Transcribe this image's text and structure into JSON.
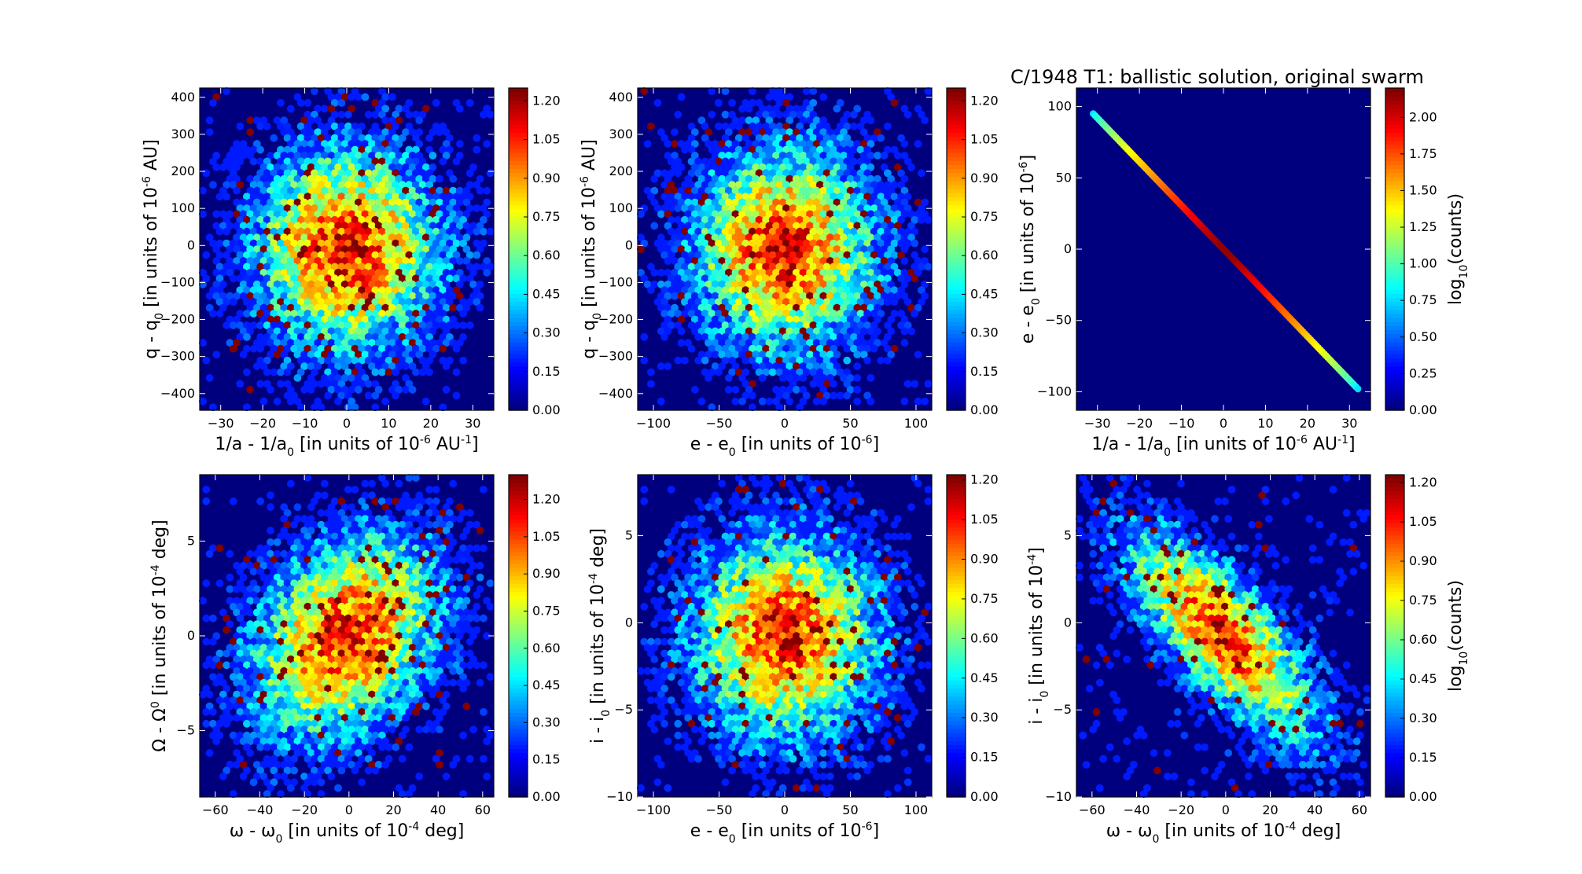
{
  "title": "C/1948 T1:  ballistic solution, original swarm",
  "colors": {
    "background": "#00007f",
    "frame": "#000000"
  },
  "chart_data": [
    {
      "type": "heatmap",
      "xlabel_parts": [
        "1/a - 1/a",
        "0",
        " [in units of 10",
        "-6",
        " AU",
        "-1",
        "]"
      ],
      "ylabel_parts": [
        "q - q",
        "0",
        " [in units of 10",
        "-6",
        " AU]"
      ],
      "xlim": [
        -35,
        35
      ],
      "ylim": [
        -445,
        425
      ],
      "xticks": [
        -30,
        -20,
        -10,
        0,
        10,
        20,
        30
      ],
      "yticks": [
        -400,
        -300,
        -200,
        -100,
        0,
        100,
        200,
        300,
        400
      ],
      "corr": 0,
      "sx": 0.3,
      "sy": 0.3,
      "mx": 0,
      "my": 0,
      "cbar_ticks": [
        "0.00",
        "0.15",
        "0.30",
        "0.45",
        "0.60",
        "0.75",
        "0.90",
        "1.05",
        "1.20"
      ],
      "cbar_max": 1.25,
      "cbar_label": ""
    },
    {
      "type": "heatmap",
      "xlabel_parts": [
        "e - e",
        "0",
        " [in units of 10",
        "-6",
        "]"
      ],
      "ylabel_parts": [
        "q - q",
        "0",
        " [in units of 10",
        "-6",
        " AU]"
      ],
      "xlim": [
        -112,
        112
      ],
      "ylim": [
        -445,
        425
      ],
      "xticks": [
        -100,
        -50,
        0,
        50,
        100
      ],
      "yticks": [
        -400,
        -300,
        -200,
        -100,
        0,
        100,
        200,
        300,
        400
      ],
      "corr": 0,
      "sx": 0.3,
      "sy": 0.3,
      "mx": 0,
      "my": 0,
      "cbar_ticks": [
        "0.00",
        "0.15",
        "0.30",
        "0.45",
        "0.60",
        "0.75",
        "0.90",
        "1.05",
        "1.20"
      ],
      "cbar_max": 1.25,
      "cbar_label": ""
    },
    {
      "type": "heatmap",
      "xlabel_parts": [
        "1/a - 1/a",
        "0",
        " [in units of 10",
        "-6",
        " AU",
        "-1",
        "]"
      ],
      "ylabel_parts": [
        "e - e",
        "0",
        " [in units of 10",
        "-6",
        "]"
      ],
      "xlim": [
        -35,
        35
      ],
      "ylim": [
        -113,
        113
      ],
      "xticks": [
        -30,
        -20,
        -10,
        0,
        10,
        20,
        30
      ],
      "yticks": [
        -100,
        -50,
        0,
        50,
        100
      ],
      "line": {
        "x0": -31,
        "y0": 95,
        "x1": 32,
        "y1": -98,
        "peak": 2.2
      },
      "cbar_ticks": [
        "0.00",
        "0.25",
        "0.50",
        "0.75",
        "1.00",
        "1.25",
        "1.50",
        "1.75",
        "2.00"
      ],
      "cbar_max": 2.2,
      "cbar_label_parts": [
        "log",
        "10",
        "(counts)"
      ]
    },
    {
      "type": "heatmap",
      "xlabel_parts": [
        "ω - ω",
        "0",
        " [in units of 10",
        "-4",
        " deg]"
      ],
      "ylabel_parts": [
        "Ω - Ω",
        "0",
        " [in units of 10",
        "-4",
        " deg]"
      ],
      "xlim": [
        -67,
        65
      ],
      "ylim": [
        -8.5,
        8.5
      ],
      "xticks": [
        -60,
        -40,
        -20,
        0,
        20,
        40,
        60
      ],
      "yticks": [
        -5,
        0,
        5
      ],
      "corr": 0.3,
      "sx": 0.3,
      "sy": 0.3,
      "mx": 0,
      "my": 0,
      "cbar_ticks": [
        "0.00",
        "0.15",
        "0.30",
        "0.45",
        "0.60",
        "0.75",
        "0.90",
        "1.05",
        "1.20"
      ],
      "cbar_max": 1.3,
      "cbar_label": ""
    },
    {
      "type": "heatmap",
      "xlabel_parts": [
        "e - e",
        "0",
        " [in units of 10",
        "-6",
        "]"
      ],
      "ylabel_parts": [
        "i - i",
        "0",
        " [in units of 10",
        "-4",
        " deg]"
      ],
      "xlim": [
        -112,
        112
      ],
      "ylim": [
        -10,
        8.5
      ],
      "xticks": [
        -100,
        -50,
        0,
        50,
        100
      ],
      "yticks": [
        -10,
        -5,
        0,
        5
      ],
      "corr": 0,
      "sx": 0.3,
      "sy": 0.3,
      "mx": 0,
      "my": 0,
      "cbar_ticks": [
        "0.00",
        "0.15",
        "0.30",
        "0.45",
        "0.60",
        "0.75",
        "0.90",
        "1.05",
        "1.20"
      ],
      "cbar_max": 1.22,
      "cbar_label": ""
    },
    {
      "type": "heatmap",
      "xlabel_parts": [
        "ω - ω",
        "0",
        " [in units of 10",
        "-4",
        " deg]"
      ],
      "ylabel_parts": [
        "i - i",
        "0",
        " [in units of 10",
        "-4",
        "]"
      ],
      "xlim": [
        -67,
        65
      ],
      "ylim": [
        -10,
        8.5
      ],
      "xticks": [
        -60,
        -40,
        -20,
        0,
        20,
        40,
        60
      ],
      "yticks": [
        -10,
        -5,
        0,
        5
      ],
      "corr": -0.75,
      "sx": 0.3,
      "sy": 0.3,
      "mx": 0,
      "my": 0,
      "cbar_ticks": [
        "0.00",
        "0.15",
        "0.30",
        "0.45",
        "0.60",
        "0.75",
        "0.90",
        "1.05",
        "1.20"
      ],
      "cbar_max": 1.23,
      "cbar_label_parts": [
        "log",
        "10",
        "(counts)"
      ]
    }
  ]
}
